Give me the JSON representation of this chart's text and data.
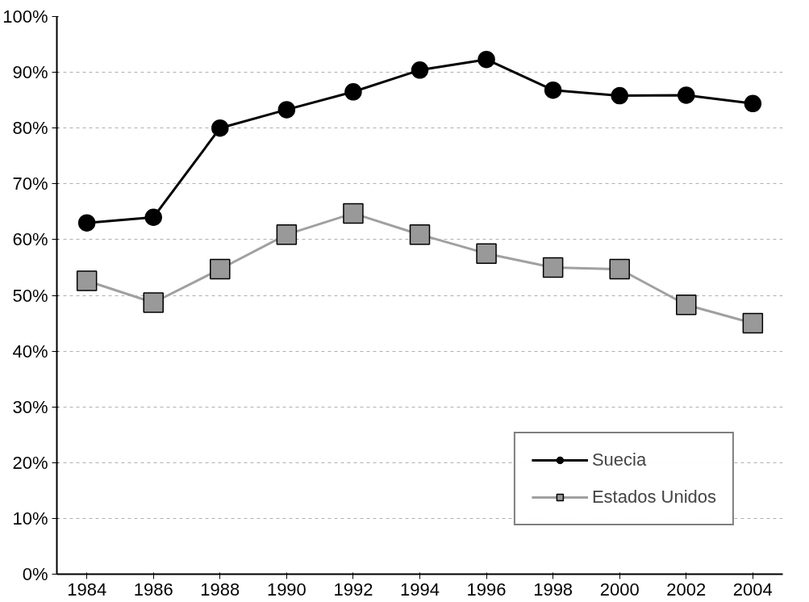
{
  "chart_data": {
    "type": "line",
    "categories": [
      "1984",
      "1986",
      "1988",
      "1990",
      "1992",
      "1994",
      "1996",
      "1998",
      "2000",
      "2002",
      "2004"
    ],
    "series": [
      {
        "name": "Suecia",
        "color": "#000000",
        "marker": "circle",
        "values": [
          63,
          64,
          80,
          83.3,
          86.5,
          90.4,
          92.3,
          86.8,
          85.8,
          85.9,
          84.4
        ]
      },
      {
        "name": "Estados Unidos",
        "color": "#a0a0a0",
        "marker": "square",
        "values": [
          52.6,
          48.7,
          54.7,
          60.9,
          64.7,
          60.9,
          57.5,
          55,
          54.7,
          48.3,
          45
        ]
      }
    ],
    "ylim": [
      0,
      100
    ],
    "yticks": [
      {
        "value": 0,
        "label": "0%"
      },
      {
        "value": 10,
        "label": "10%"
      },
      {
        "value": 20,
        "label": "20%"
      },
      {
        "value": 30,
        "label": "30%"
      },
      {
        "value": 40,
        "label": "40%"
      },
      {
        "value": 50,
        "label": "50%"
      },
      {
        "value": 60,
        "label": "60%"
      },
      {
        "value": 70,
        "label": "70%"
      },
      {
        "value": 80,
        "label": "80%"
      },
      {
        "value": 90,
        "label": "90%"
      },
      {
        "value": 100,
        "label": "100%"
      }
    ],
    "grid": "y",
    "legend": "bottom right",
    "line_style": "solid"
  }
}
